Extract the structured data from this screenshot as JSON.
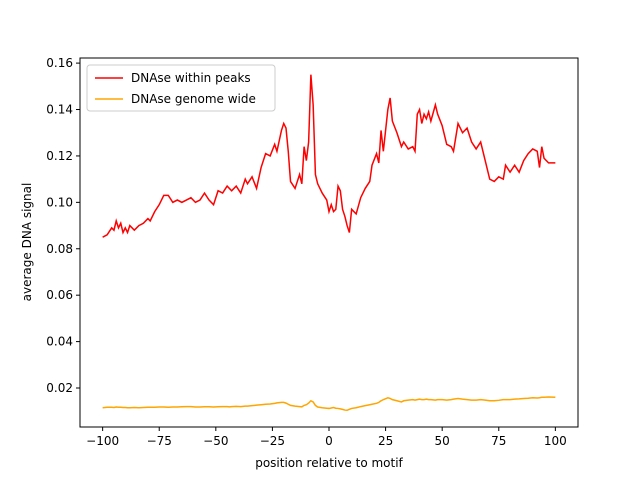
{
  "chart_data": {
    "type": "line",
    "xlabel": "position relative to motif",
    "ylabel": "average DNA signal",
    "x": [
      -100,
      -98,
      -96,
      -95,
      -94,
      -93,
      -92,
      -91,
      -90,
      -89,
      -88,
      -86,
      -84,
      -82,
      -80,
      -79,
      -77,
      -75,
      -73,
      -71,
      -69,
      -67,
      -65,
      -63,
      -61,
      -59,
      -57,
      -55,
      -53,
      -51,
      -49,
      -47,
      -45,
      -44,
      -43,
      -41,
      -39,
      -37,
      -36,
      -34,
      -32,
      -30,
      -28,
      -26,
      -24,
      -23,
      -21,
      -20,
      -19,
      -18,
      -17,
      -15,
      -13,
      -12,
      -11,
      -10,
      -9,
      -8,
      -7,
      -6,
      -5,
      -3,
      -1,
      0,
      1,
      2,
      3,
      4,
      5,
      6,
      7,
      8,
      9,
      10,
      12,
      14,
      16,
      18,
      19,
      21,
      22,
      23,
      24,
      26,
      27,
      28,
      30,
      32,
      33,
      35,
      37,
      38,
      39,
      40,
      41,
      42,
      43,
      44,
      45,
      47,
      48,
      50,
      52,
      54,
      55,
      57,
      59,
      61,
      63,
      65,
      67,
      69,
      71,
      73,
      75,
      77,
      78,
      80,
      82,
      84,
      86,
      88,
      90,
      92,
      93,
      94,
      95,
      97,
      100
    ],
    "series": [
      {
        "name": "DNAse within peaks",
        "color": "#ff0000",
        "values": [
          0.085,
          0.086,
          0.089,
          0.088,
          0.092,
          0.089,
          0.091,
          0.087,
          0.089,
          0.087,
          0.09,
          0.088,
          0.09,
          0.091,
          0.093,
          0.092,
          0.096,
          0.099,
          0.103,
          0.103,
          0.1,
          0.101,
          0.1,
          0.101,
          0.102,
          0.1,
          0.101,
          0.104,
          0.101,
          0.099,
          0.105,
          0.104,
          0.107,
          0.106,
          0.105,
          0.107,
          0.104,
          0.11,
          0.108,
          0.111,
          0.106,
          0.115,
          0.121,
          0.12,
          0.125,
          0.122,
          0.131,
          0.134,
          0.132,
          0.122,
          0.109,
          0.106,
          0.112,
          0.108,
          0.124,
          0.118,
          0.126,
          0.155,
          0.142,
          0.112,
          0.108,
          0.104,
          0.101,
          0.096,
          0.099,
          0.096,
          0.097,
          0.107,
          0.105,
          0.097,
          0.094,
          0.09,
          0.087,
          0.097,
          0.095,
          0.102,
          0.106,
          0.109,
          0.116,
          0.121,
          0.117,
          0.131,
          0.122,
          0.14,
          0.145,
          0.135,
          0.13,
          0.124,
          0.126,
          0.123,
          0.124,
          0.122,
          0.138,
          0.14,
          0.134,
          0.138,
          0.136,
          0.139,
          0.135,
          0.142,
          0.138,
          0.133,
          0.125,
          0.124,
          0.122,
          0.134,
          0.13,
          0.132,
          0.126,
          0.123,
          0.126,
          0.118,
          0.11,
          0.109,
          0.111,
          0.11,
          0.116,
          0.113,
          0.116,
          0.113,
          0.118,
          0.121,
          0.123,
          0.122,
          0.115,
          0.124,
          0.119,
          0.117,
          0.117
        ]
      },
      {
        "name": "DNAse genome wide",
        "color": "#ffa500",
        "values": [
          0.0115,
          0.0117,
          0.0117,
          0.0116,
          0.0118,
          0.0117,
          0.0117,
          0.0116,
          0.0116,
          0.0115,
          0.0115,
          0.0116,
          0.0115,
          0.0116,
          0.0117,
          0.0117,
          0.0117,
          0.0118,
          0.0118,
          0.0117,
          0.0118,
          0.0118,
          0.0119,
          0.012,
          0.012,
          0.0118,
          0.0118,
          0.0119,
          0.0119,
          0.0118,
          0.0119,
          0.012,
          0.012,
          0.0119,
          0.012,
          0.0121,
          0.012,
          0.0122,
          0.0122,
          0.0124,
          0.0126,
          0.0128,
          0.013,
          0.0131,
          0.0134,
          0.0136,
          0.0138,
          0.0138,
          0.0135,
          0.013,
          0.0125,
          0.0122,
          0.012,
          0.0119,
          0.0125,
          0.0128,
          0.0135,
          0.0145,
          0.014,
          0.0125,
          0.0118,
          0.0115,
          0.0113,
          0.0112,
          0.0114,
          0.0116,
          0.0113,
          0.0112,
          0.011,
          0.0108,
          0.0105,
          0.0104,
          0.0108,
          0.0112,
          0.0115,
          0.012,
          0.0124,
          0.0128,
          0.013,
          0.0134,
          0.0138,
          0.0145,
          0.015,
          0.0158,
          0.0155,
          0.015,
          0.0145,
          0.014,
          0.0145,
          0.0148,
          0.015,
          0.0148,
          0.015,
          0.0152,
          0.015,
          0.015,
          0.0152,
          0.015,
          0.015,
          0.0148,
          0.015,
          0.015,
          0.0148,
          0.015,
          0.0152,
          0.0155,
          0.0152,
          0.015,
          0.0148,
          0.0148,
          0.015,
          0.0148,
          0.0145,
          0.0145,
          0.0147,
          0.015,
          0.015,
          0.015,
          0.0152,
          0.0153,
          0.0155,
          0.0156,
          0.0158,
          0.0157,
          0.0158,
          0.016,
          0.016,
          0.0161,
          0.016
        ]
      }
    ],
    "xlim": [
      -110,
      110
    ],
    "ylim": [
      0.0032,
      0.1622
    ],
    "xticks": [
      {
        "value": -100,
        "label": "−100"
      },
      {
        "value": -75,
        "label": "−75"
      },
      {
        "value": -50,
        "label": "−50"
      },
      {
        "value": -25,
        "label": "−25"
      },
      0,
      25,
      50,
      75,
      100
    ],
    "yticks": [
      0.02,
      0.04,
      0.06,
      0.08,
      {
        "value": 0.1,
        "label": "0.10"
      },
      0.12,
      0.14,
      0.16
    ],
    "legend": "upper left"
  }
}
